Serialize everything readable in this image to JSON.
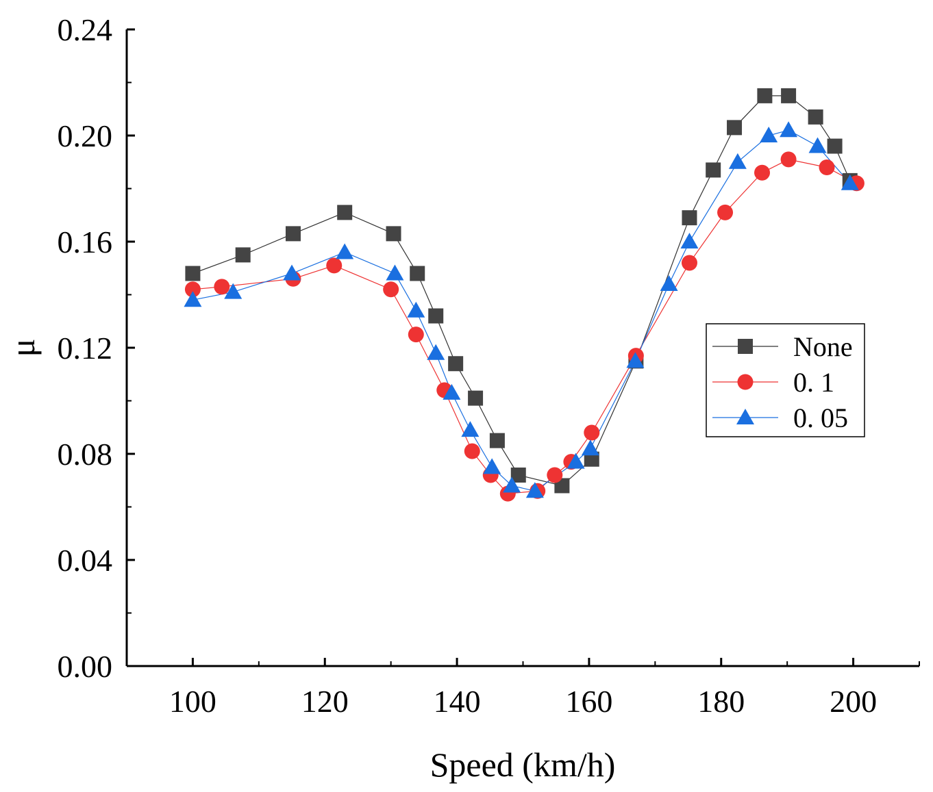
{
  "chart_data": {
    "type": "line",
    "title": "",
    "xlabel": "Speed (km/h)",
    "ylabel": "μ",
    "xlim": [
      90,
      210
    ],
    "ylim": [
      0.0,
      0.24
    ],
    "xticks": [
      100,
      120,
      140,
      160,
      180,
      200
    ],
    "xtick_labels": [
      "100",
      "120",
      "140",
      "160",
      "180",
      "200"
    ],
    "yticks": [
      0.0,
      0.04,
      0.08,
      0.12,
      0.16,
      0.2,
      0.24
    ],
    "ytick_labels": [
      "0.00",
      "0.04",
      "0.08",
      "0.12",
      "0.16",
      "0.20",
      "0.24"
    ],
    "grid": false,
    "legend_position": "center-right",
    "series": [
      {
        "name": "None",
        "marker": "square",
        "color": "#444444",
        "line_color": "#333333",
        "x": [
          100.0,
          107.6,
          115.2,
          123.0,
          130.4,
          134.0,
          136.8,
          139.8,
          142.8,
          146.1,
          149.3,
          155.9,
          160.4,
          167.1,
          175.2,
          178.8,
          182.0,
          186.6,
          190.2,
          194.3,
          197.2,
          199.5
        ],
        "y": [
          0.148,
          0.155,
          0.163,
          0.171,
          0.163,
          0.148,
          0.132,
          0.114,
          0.101,
          0.085,
          0.072,
          0.068,
          0.078,
          0.115,
          0.169,
          0.187,
          0.203,
          0.215,
          0.215,
          0.207,
          0.196,
          0.183
        ]
      },
      {
        "name": "0. 1",
        "marker": "circle",
        "color": "#ee3333",
        "line_color": "#ee3333",
        "x": [
          100.0,
          104.4,
          115.2,
          121.4,
          130.0,
          133.8,
          138.1,
          142.3,
          145.1,
          147.7,
          152.2,
          154.8,
          157.3,
          160.4,
          167.1,
          175.2,
          180.6,
          186.2,
          190.2,
          196.0,
          200.5
        ],
        "y": [
          0.142,
          0.143,
          0.146,
          0.151,
          0.142,
          0.125,
          0.104,
          0.081,
          0.072,
          0.065,
          0.066,
          0.072,
          0.077,
          0.088,
          0.117,
          0.152,
          0.171,
          0.186,
          0.191,
          0.188,
          0.182
        ]
      },
      {
        "name": "0. 05",
        "marker": "triangle",
        "color": "#1a6fe0",
        "line_color": "#1a6fe0",
        "x": [
          100.0,
          106.1,
          115.0,
          123.0,
          130.6,
          133.8,
          136.8,
          139.2,
          142.0,
          145.3,
          148.3,
          151.8,
          158.0,
          160.2,
          167.0,
          172.1,
          175.2,
          182.5,
          187.2,
          190.2,
          194.6,
          199.5
        ],
        "y": [
          0.138,
          0.141,
          0.148,
          0.156,
          0.148,
          0.134,
          0.118,
          0.103,
          0.089,
          0.075,
          0.068,
          0.066,
          0.077,
          0.082,
          0.115,
          0.144,
          0.16,
          0.19,
          0.2,
          0.202,
          0.196,
          0.182
        ]
      }
    ]
  }
}
